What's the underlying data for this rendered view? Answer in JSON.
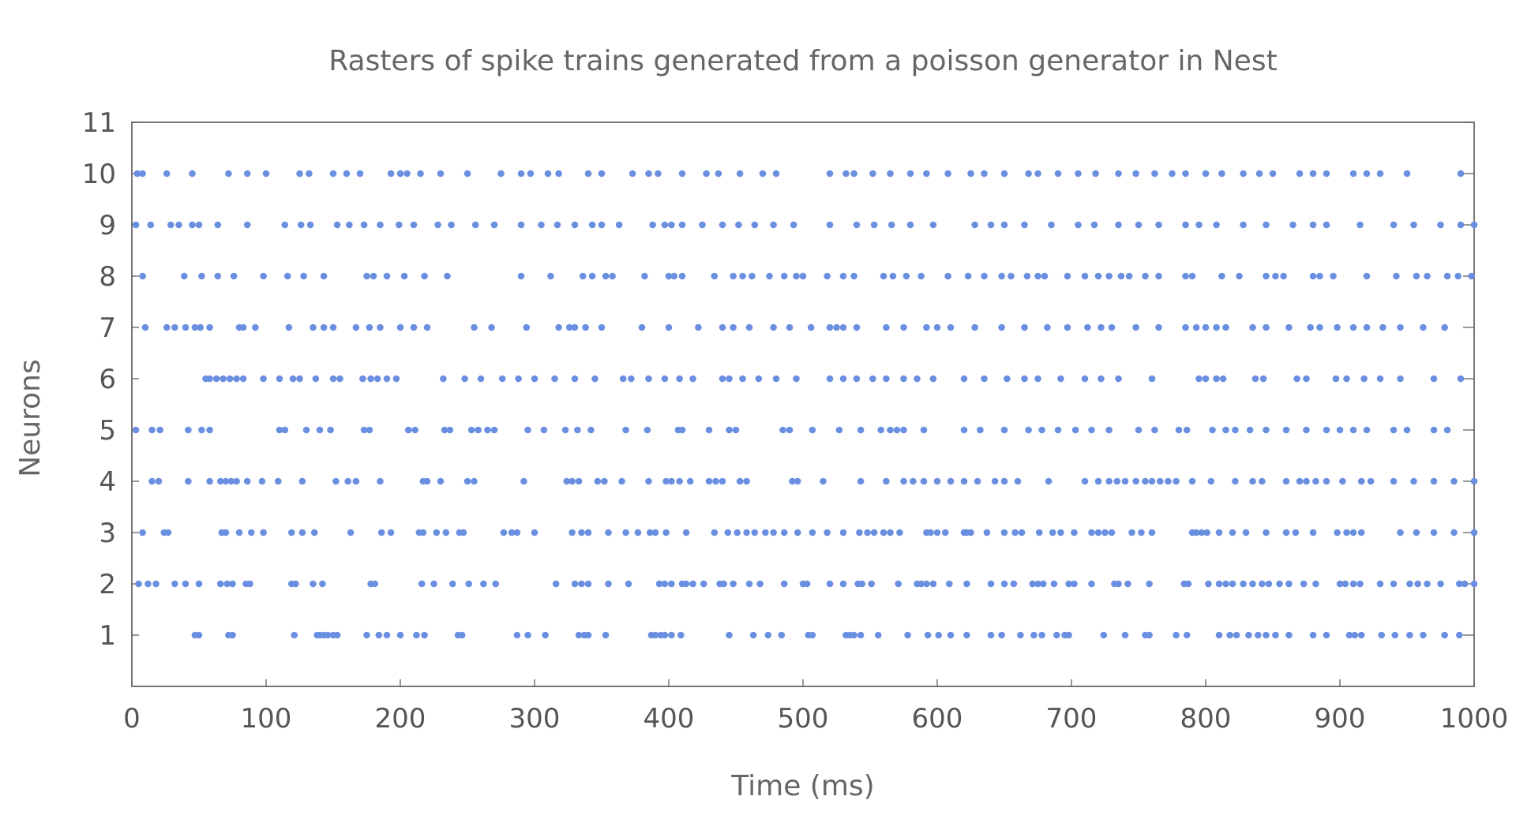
{
  "chart_data": {
    "type": "scatter",
    "title": "Rasters of spike trains generated from a poisson generator in Nest",
    "xlabel": "Time (ms)",
    "ylabel": "Neurons",
    "xlim": [
      0,
      1000
    ],
    "ylim": [
      0,
      11
    ],
    "x_ticks": [
      0,
      100,
      200,
      300,
      400,
      500,
      600,
      700,
      800,
      900,
      1000
    ],
    "y_ticks": [
      1,
      2,
      3,
      4,
      5,
      6,
      7,
      8,
      9,
      10,
      11
    ],
    "grid": false,
    "legend": "none",
    "marker_color": "#6a8fe0",
    "frame_color": "#555555",
    "series": [
      {
        "neuron": 1,
        "spike_times": [
          47,
          50,
          72,
          75,
          121,
          138,
          140,
          143,
          146,
          150,
          153,
          175,
          184,
          190,
          200,
          212,
          218,
          243,
          246,
          287,
          295,
          308,
          333,
          337,
          340,
          353,
          387,
          390,
          394,
          397,
          402,
          409,
          445,
          463,
          474,
          484,
          504,
          507,
          532,
          535,
          538,
          543,
          556,
          578,
          593,
          601,
          610,
          622,
          640,
          648,
          662,
          672,
          678,
          689,
          695,
          698,
          724,
          740,
          755,
          758,
          778,
          786,
          810,
          818,
          823,
          832,
          839,
          845,
          852,
          862,
          880,
          890,
          907,
          911,
          916,
          931,
          941,
          952,
          962,
          978,
          989
        ]
      },
      {
        "neuron": 2,
        "spike_times": [
          5,
          12,
          18,
          32,
          40,
          50,
          66,
          71,
          75,
          85,
          88,
          119,
          122,
          135,
          142,
          178,
          181,
          216,
          225,
          239,
          251,
          262,
          271,
          316,
          330,
          335,
          340,
          355,
          370,
          393,
          397,
          402,
          410,
          413,
          418,
          426,
          438,
          441,
          448,
          460,
          468,
          486,
          500,
          503,
          520,
          530,
          541,
          544,
          551,
          571,
          585,
          588,
          592,
          597,
          609,
          622,
          640,
          650,
          657,
          671,
          675,
          679,
          687,
          698,
          702,
          715,
          732,
          735,
          742,
          758,
          784,
          787,
          802,
          810,
          815,
          820,
          828,
          835,
          842,
          847,
          855,
          862,
          873,
          882,
          900,
          904,
          910,
          915,
          930,
          940,
          952,
          958,
          965,
          975,
          989,
          993,
          1000
        ]
      },
      {
        "neuron": 3,
        "spike_times": [
          8,
          24,
          27,
          67,
          70,
          80,
          89,
          98,
          119,
          127,
          136,
          163,
          186,
          193,
          214,
          217,
          227,
          234,
          244,
          247,
          277,
          283,
          287,
          300,
          328,
          335,
          340,
          355,
          368,
          377,
          386,
          390,
          398,
          413,
          434,
          444,
          451,
          458,
          464,
          472,
          478,
          486,
          496,
          507,
          518,
          530,
          542,
          548,
          553,
          560,
          565,
          572,
          592,
          595,
          600,
          606,
          620,
          622,
          625,
          637,
          650,
          658,
          663,
          676,
          686,
          692,
          702,
          715,
          720,
          725,
          730,
          745,
          752,
          760,
          790,
          793,
          797,
          801,
          810,
          820,
          830,
          845,
          860,
          867,
          880,
          898,
          905,
          910,
          916,
          945,
          957,
          970,
          985,
          1000
        ]
      },
      {
        "neuron": 4,
        "spike_times": [
          15,
          20,
          42,
          58,
          66,
          70,
          74,
          78,
          86,
          97,
          109,
          127,
          152,
          161,
          167,
          185,
          217,
          220,
          230,
          250,
          255,
          292,
          324,
          328,
          333,
          347,
          352,
          365,
          385,
          398,
          402,
          408,
          416,
          430,
          435,
          440,
          453,
          458,
          492,
          496,
          515,
          543,
          562,
          575,
          582,
          590,
          600,
          610,
          620,
          630,
          643,
          650,
          660,
          683,
          710,
          720,
          728,
          734,
          740,
          748,
          755,
          760,
          766,
          772,
          778,
          790,
          804,
          822,
          835,
          842,
          860,
          870,
          875,
          882,
          890,
          902,
          916,
          923,
          940,
          955,
          970,
          985,
          1000
        ]
      },
      {
        "neuron": 5,
        "spike_times": [
          3,
          15,
          21,
          42,
          52,
          58,
          110,
          114,
          130,
          140,
          148,
          173,
          177,
          206,
          211,
          233,
          237,
          253,
          258,
          265,
          270,
          295,
          307,
          323,
          332,
          342,
          368,
          384,
          407,
          410,
          430,
          445,
          450,
          485,
          490,
          507,
          527,
          543,
          558,
          565,
          570,
          575,
          590,
          620,
          632,
          650,
          668,
          678,
          690,
          703,
          715,
          728,
          750,
          762,
          780,
          786,
          805,
          815,
          822,
          833,
          845,
          860,
          875,
          890,
          900,
          910,
          920,
          940,
          950,
          970,
          980
        ]
      },
      {
        "neuron": 6,
        "spike_times": [
          55,
          58,
          63,
          68,
          73,
          78,
          83,
          98,
          110,
          120,
          125,
          137,
          150,
          155,
          172,
          178,
          183,
          190,
          197,
          232,
          248,
          260,
          276,
          288,
          300,
          315,
          330,
          345,
          366,
          372,
          385,
          397,
          408,
          418,
          440,
          445,
          455,
          467,
          480,
          495,
          520,
          530,
          540,
          552,
          562,
          575,
          585,
          597,
          620,
          635,
          652,
          665,
          675,
          692,
          710,
          722,
          735,
          760,
          795,
          800,
          808,
          813,
          837,
          843,
          868,
          875,
          897,
          905,
          918,
          930,
          945,
          970,
          990
        ]
      },
      {
        "neuron": 7,
        "spike_times": [
          10,
          26,
          32,
          40,
          47,
          51,
          58,
          80,
          83,
          92,
          117,
          135,
          143,
          150,
          167,
          177,
          185,
          200,
          210,
          220,
          255,
          268,
          294,
          318,
          326,
          330,
          338,
          350,
          380,
          400,
          422,
          440,
          448,
          460,
          478,
          490,
          506,
          520,
          525,
          530,
          540,
          562,
          575,
          592,
          600,
          610,
          628,
          648,
          665,
          682,
          697,
          712,
          722,
          730,
          748,
          765,
          785,
          793,
          800,
          808,
          815,
          835,
          845,
          862,
          878,
          885,
          898,
          910,
          920,
          932,
          945,
          962,
          978
        ]
      },
      {
        "neuron": 8,
        "spike_times": [
          8,
          39,
          52,
          64,
          76,
          98,
          116,
          128,
          143,
          175,
          180,
          190,
          203,
          218,
          235,
          290,
          312,
          336,
          343,
          353,
          358,
          382,
          400,
          404,
          410,
          434,
          448,
          455,
          462,
          475,
          486,
          495,
          500,
          518,
          530,
          538,
          560,
          567,
          577,
          588,
          608,
          623,
          635,
          648,
          655,
          667,
          675,
          680,
          697,
          710,
          720,
          728,
          737,
          743,
          755,
          765,
          785,
          790,
          812,
          825,
          845,
          852,
          858,
          880,
          885,
          895,
          920,
          942,
          957,
          965,
          980,
          988,
          998
        ]
      },
      {
        "neuron": 9,
        "spike_times": [
          3,
          14,
          29,
          35,
          45,
          50,
          64,
          86,
          114,
          126,
          133,
          153,
          162,
          173,
          185,
          199,
          210,
          228,
          238,
          256,
          270,
          290,
          305,
          317,
          330,
          343,
          350,
          363,
          388,
          397,
          402,
          410,
          425,
          440,
          452,
          464,
          478,
          493,
          520,
          540,
          553,
          566,
          580,
          597,
          628,
          640,
          650,
          665,
          685,
          705,
          717,
          735,
          750,
          765,
          785,
          795,
          808,
          828,
          845,
          865,
          880,
          890,
          915,
          940,
          955,
          975,
          990,
          1000
        ]
      },
      {
        "neuron": 10,
        "spike_times": [
          4,
          8,
          26,
          45,
          72,
          86,
          100,
          125,
          132,
          150,
          160,
          170,
          193,
          200,
          205,
          215,
          230,
          250,
          275,
          290,
          297,
          310,
          318,
          340,
          350,
          373,
          385,
          392,
          410,
          428,
          437,
          453,
          470,
          480,
          520,
          532,
          538,
          552,
          565,
          580,
          592,
          608,
          625,
          635,
          650,
          668,
          675,
          690,
          705,
          718,
          735,
          748,
          762,
          775,
          785,
          800,
          812,
          828,
          840,
          850,
          870,
          880,
          890,
          910,
          920,
          930,
          950,
          990
        ]
      }
    ]
  }
}
